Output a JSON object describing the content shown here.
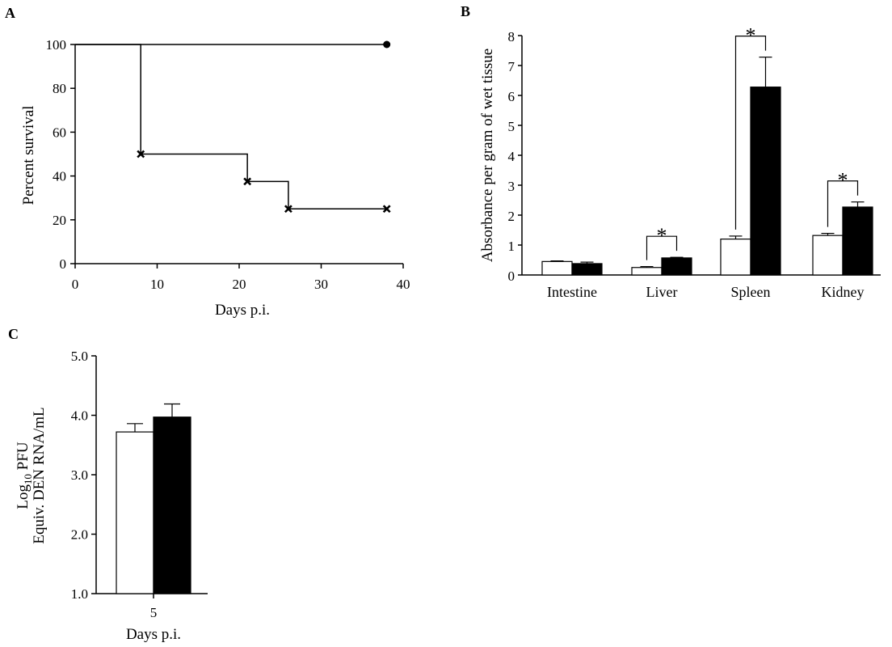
{
  "chart_data": [
    {
      "panel": "A",
      "type": "line",
      "xlabel": "Days p.i.",
      "ylabel": "Percent survival",
      "xlim": [
        0,
        40
      ],
      "ylim": [
        0,
        100
      ],
      "xticks": [
        "0",
        "10",
        "20",
        "30",
        "40"
      ],
      "yticks": [
        "0",
        "20",
        "40",
        "60",
        "80",
        "100"
      ],
      "grid": false,
      "series": [
        {
          "marker": "circle",
          "steps": [
            [
              0,
              100
            ],
            [
              38,
              100
            ]
          ],
          "markers": [
            [
              38,
              100
            ]
          ]
        },
        {
          "marker": "x",
          "steps": [
            [
              0,
              100
            ],
            [
              8,
              100
            ],
            [
              8,
              50
            ],
            [
              21,
              50
            ],
            [
              21,
              37.5
            ],
            [
              26,
              37.5
            ],
            [
              26,
              25
            ],
            [
              38,
              25
            ]
          ],
          "markers": [
            [
              8,
              50
            ],
            [
              21,
              37.5
            ],
            [
              26,
              25
            ],
            [
              38,
              25
            ]
          ]
        }
      ]
    },
    {
      "panel": "B",
      "type": "bar",
      "xlabel": "",
      "ylabel": "Absorbance per gram of wet tissue",
      "ylim": [
        0,
        8
      ],
      "yticks": [
        "0",
        "1",
        "2",
        "3",
        "4",
        "5",
        "6",
        "7",
        "8"
      ],
      "categories": [
        "Intestine",
        "Liver",
        "Spleen",
        "Kidney"
      ],
      "grid": false,
      "series": [
        {
          "fill": "#ffffff",
          "values": [
            0.45,
            0.25,
            1.2,
            1.32
          ],
          "errors": [
            0.02,
            0.03,
            0.1,
            0.07
          ]
        },
        {
          "fill": "#000000",
          "values": [
            0.38,
            0.57,
            6.28,
            2.27
          ],
          "errors": [
            0.05,
            0.02,
            1.0,
            0.17
          ]
        }
      ],
      "annotations": [
        {
          "category": "Liver",
          "text": "*"
        },
        {
          "category": "Spleen",
          "text": "*"
        },
        {
          "category": "Kidney",
          "text": "*"
        }
      ]
    },
    {
      "panel": "C",
      "type": "bar",
      "xlabel": "Days p.i.",
      "ylabel": [
        "Log10 PFU",
        "Equiv. DEN RNA/mL"
      ],
      "ylabel_parts": {
        "base": "Log",
        "sub": "10",
        "rest": " PFU",
        "line2": "Equiv. DEN RNA/mL"
      },
      "ylim": [
        1.0,
        5.0
      ],
      "yticks": [
        "1.0",
        "2.0",
        "3.0",
        "4.0",
        "5.0"
      ],
      "categories": [
        "5"
      ],
      "grid": false,
      "series": [
        {
          "fill": "#ffffff",
          "values": [
            3.72
          ],
          "errors": [
            0.14
          ]
        },
        {
          "fill": "#000000",
          "values": [
            3.97
          ],
          "errors": [
            0.22
          ]
        }
      ]
    }
  ]
}
